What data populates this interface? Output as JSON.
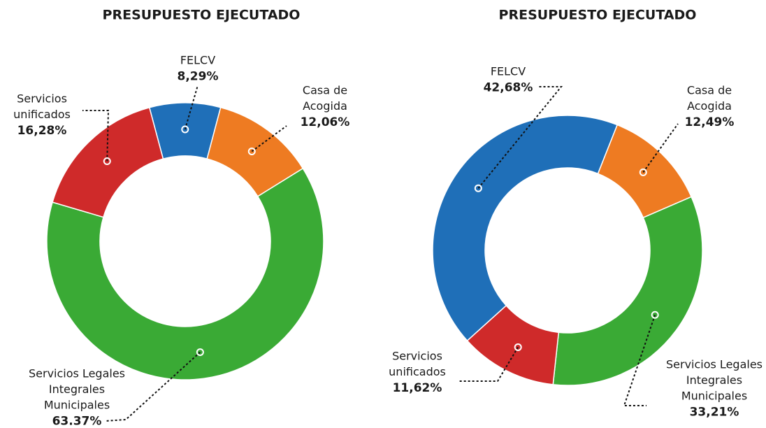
{
  "chart_data": [
    {
      "type": "pie",
      "title": "PRESUPUESTO EJECUTADO",
      "categories": [
        [
          "FELCV"
        ],
        [
          "Casa de",
          "Acogida"
        ],
        [
          "Servicios Legales",
          "Integrales",
          "Municipales"
        ],
        [
          "Servicios",
          "unificados"
        ]
      ],
      "values": [
        8.29,
        12.06,
        63.37,
        16.28
      ],
      "value_labels": [
        "8,29%",
        "12,06%",
        "63.37%",
        "16,28%"
      ],
      "colors": [
        "#1f6fb8",
        "#ee7b22",
        "#3aaa35",
        "#cf2a2a"
      ]
    },
    {
      "type": "pie",
      "title": "PRESUPUESTO EJECUTADO",
      "categories": [
        [
          "FELCV"
        ],
        [
          "Casa de",
          "Acogida"
        ],
        [
          "Servicios Legales",
          "Integrales",
          "Municipales"
        ],
        [
          "Servicios",
          "unificados"
        ]
      ],
      "values": [
        42.68,
        12.49,
        33.21,
        11.62
      ],
      "value_labels": [
        "42,68%",
        "12,49%",
        "33,21%",
        "11,62%"
      ],
      "colors": [
        "#1f6fb8",
        "#ee7b22",
        "#3aaa35",
        "#cf2a2a"
      ]
    }
  ]
}
